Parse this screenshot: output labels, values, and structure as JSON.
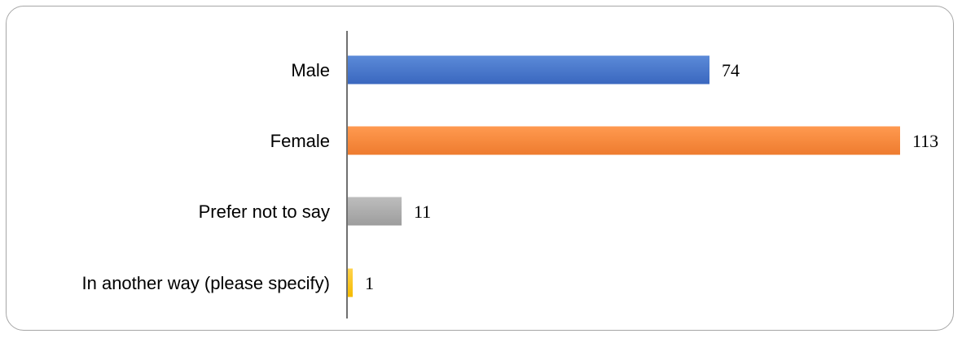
{
  "chart_data": {
    "type": "bar",
    "orientation": "horizontal",
    "categories": [
      "Male",
      "Female",
      "Prefer not to say",
      "In another way (please specify)"
    ],
    "values": [
      74,
      113,
      11,
      1
    ],
    "data_labels": [
      "74",
      "113",
      "11",
      "1"
    ],
    "colors": [
      "#4472c4",
      "#ed7d31",
      "#a5a5a5",
      "#ffc000"
    ],
    "title": "",
    "xlabel": "",
    "ylabel": "",
    "xlim": [
      0,
      113
    ],
    "grid": false,
    "legend": "none"
  }
}
